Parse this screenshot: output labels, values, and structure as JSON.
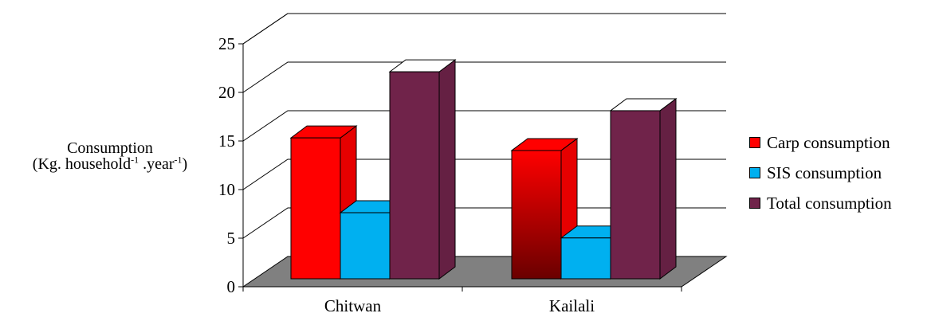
{
  "chart_data": {
    "type": "bar",
    "categories": [
      "Chitwan",
      "Kailali"
    ],
    "series": [
      {
        "name": "Carp consumption",
        "values": [
          14.5,
          13.2
        ],
        "color": "#ff0000"
      },
      {
        "name": "SIS consumption",
        "values": [
          6.8,
          4.2
        ],
        "color": "#00b0f0"
      },
      {
        "name": "Total consumption",
        "values": [
          21.3,
          17.3
        ],
        "color": "#70234a"
      }
    ],
    "ylabel": {
      "line1": "Consumption",
      "line2_prefix": "(Kg. household",
      "sup1": "-1",
      "line2_mid": " .year",
      "sup2": "-1",
      "line2_suffix": ")"
    },
    "ylim": [
      0,
      25
    ],
    "yticks": [
      "0",
      "5",
      "10",
      "15",
      "20",
      "25"
    ],
    "grid": true,
    "legend_position": "right",
    "colors": {
      "floor": "#808080",
      "top_face": "#ffffff"
    }
  }
}
